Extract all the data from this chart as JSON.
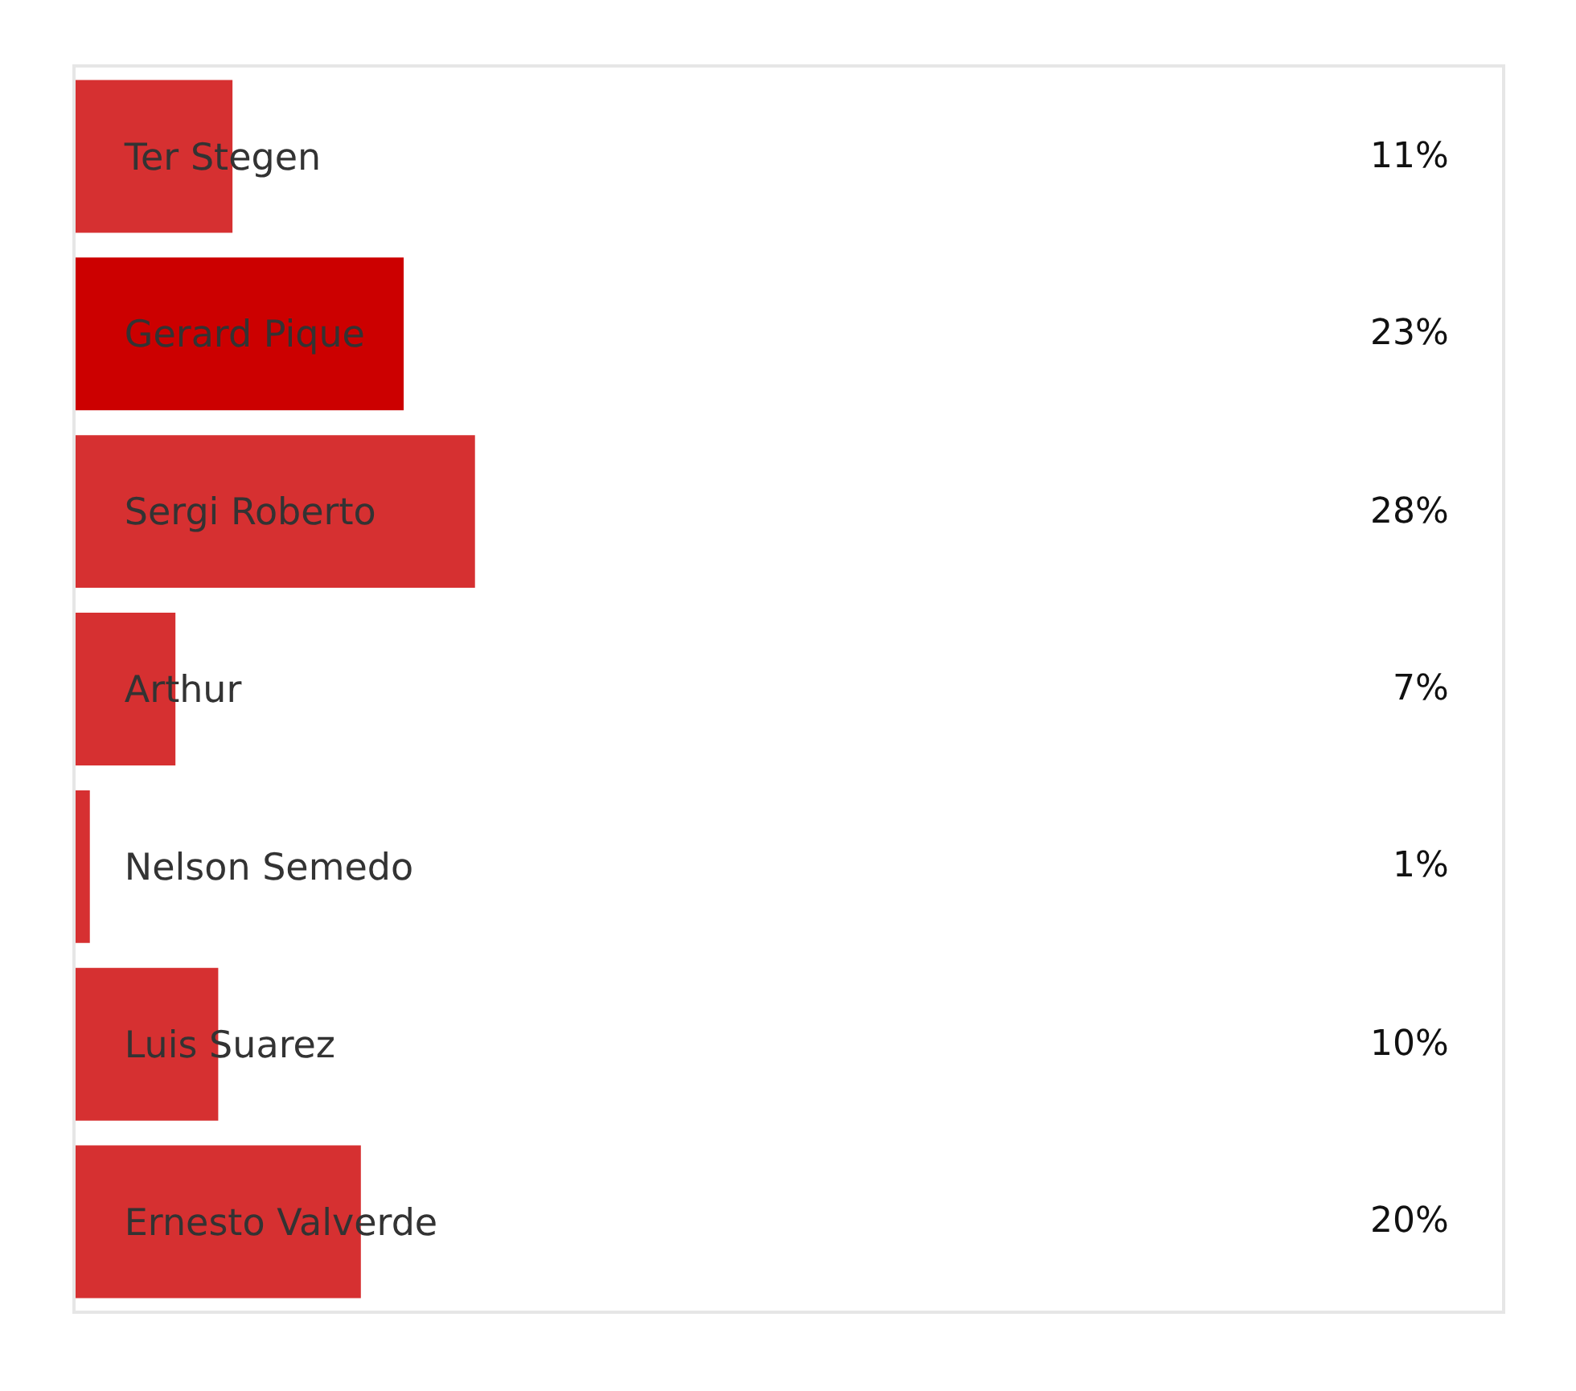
{
  "chart_data": {
    "type": "bar",
    "orientation": "horizontal",
    "categories": [
      "Ter Stegen",
      "Gerard Pique",
      "Sergi Roberto",
      "Arthur",
      "Nelson Semedo",
      "Luis Suarez",
      "Ernesto Valverde"
    ],
    "values": [
      11,
      23,
      28,
      7,
      1,
      10,
      20
    ],
    "colors": [
      "#d63031",
      "#cc0000",
      "#d63031",
      "#d63031",
      "#d63031",
      "#d63031",
      "#d63031"
    ],
    "value_labels": [
      "11%",
      "23%",
      "28%",
      "7%",
      "1%",
      "10%",
      "20%"
    ],
    "xlim": [
      0,
      100
    ],
    "tick_labels": "y"
  }
}
